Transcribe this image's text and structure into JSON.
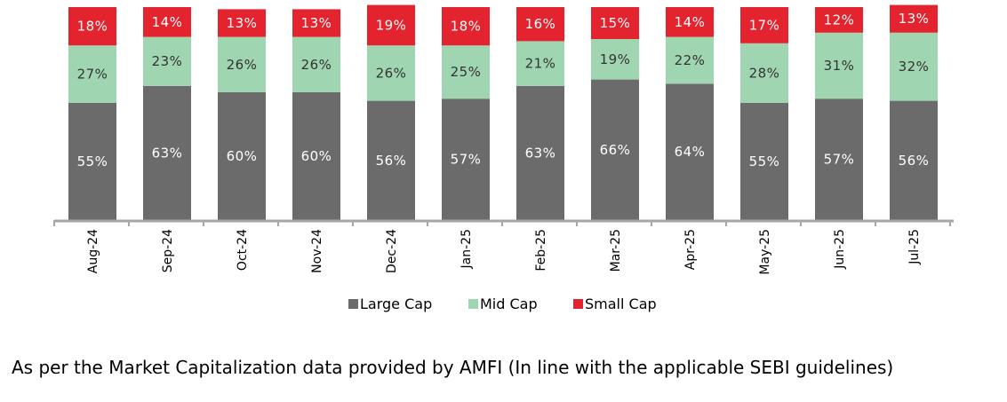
{
  "chart_data": {
    "type": "bar",
    "stacked": true,
    "percent_stacked": true,
    "categories": [
      "Aug-24",
      "Sep-24",
      "Oct-24",
      "Nov-24",
      "Dec-24",
      "Jan-25",
      "Feb-25",
      "Mar-25",
      "Apr-25",
      "May-25",
      "Jun-25",
      "Jul-25"
    ],
    "series": [
      {
        "name": "Large Cap",
        "color": "#6b6b6b",
        "label_color": "#ffffff",
        "values": [
          55,
          63,
          60,
          60,
          56,
          57,
          63,
          66,
          64,
          55,
          57,
          56
        ]
      },
      {
        "name": "Mid Cap",
        "color": "#9fd6b1",
        "label_color": "#333333",
        "values": [
          27,
          23,
          26,
          26,
          26,
          25,
          21,
          19,
          22,
          28,
          31,
          32
        ]
      },
      {
        "name": "Small Cap",
        "color": "#e3232e",
        "label_color": "#ffffff",
        "values": [
          18,
          14,
          13,
          13,
          19,
          18,
          16,
          15,
          14,
          17,
          12,
          13
        ]
      }
    ],
    "value_suffix": "%",
    "ylim": [
      0,
      100
    ],
    "grid": false,
    "legend_position": "bottom",
    "axis_color": "#a6a6a6"
  },
  "footnote": "As per the Market Capitalization data provided by AMFI (In line with the applicable SEBI guidelines)"
}
